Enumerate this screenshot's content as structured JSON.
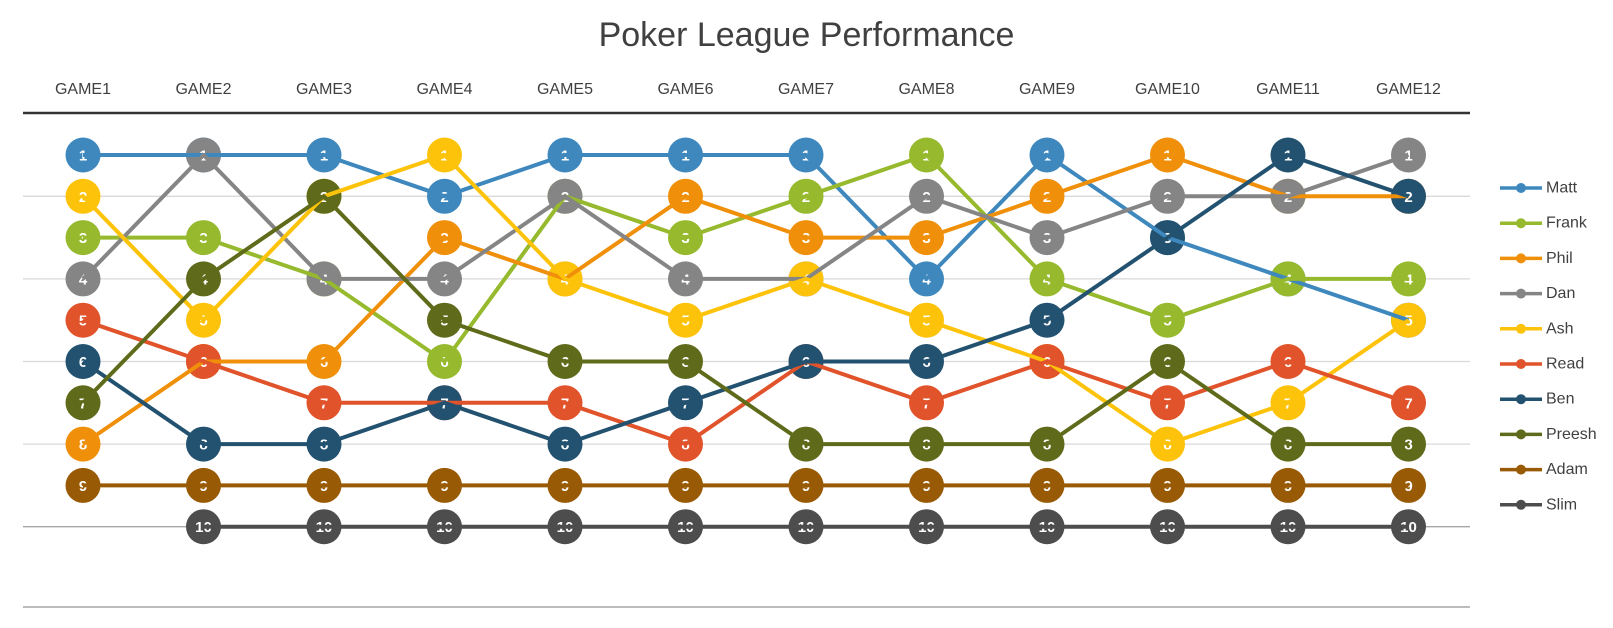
{
  "chart_data": {
    "type": "line",
    "title": "Poker League Performance",
    "categories": [
      "GAME1",
      "GAME2",
      "GAME3",
      "GAME4",
      "GAME5",
      "GAME6",
      "GAME7",
      "GAME8",
      "GAME9",
      "GAME10",
      "GAME11",
      "GAME12"
    ],
    "y_reversed": true,
    "ylim": [
      0.5,
      10.5
    ],
    "grid": true,
    "legend_position": "right",
    "series": [
      {
        "name": "Matt",
        "color": "#3E88BE",
        "values": [
          1,
          1,
          1,
          2,
          1,
          1,
          1,
          4,
          1,
          3,
          4,
          5
        ]
      },
      {
        "name": "Frank",
        "color": "#96B92D",
        "values": [
          3,
          3,
          4,
          6,
          2,
          3,
          2,
          1,
          4,
          5,
          4,
          4
        ]
      },
      {
        "name": "Phil",
        "color": "#F0900A",
        "values": [
          8,
          6,
          6,
          3,
          4,
          2,
          3,
          3,
          2,
          1,
          2,
          2
        ]
      },
      {
        "name": "Dan",
        "color": "#858585",
        "values": [
          4,
          1,
          4,
          4,
          2,
          4,
          4,
          2,
          3,
          2,
          2,
          1
        ]
      },
      {
        "name": "Ash",
        "color": "#FDC30B",
        "values": [
          2,
          5,
          2,
          1,
          4,
          5,
          4,
          5,
          6,
          8,
          7,
          5
        ]
      },
      {
        "name": "Read",
        "color": "#E0532B",
        "values": [
          5,
          6,
          7,
          7,
          7,
          8,
          6,
          7,
          6,
          7,
          6,
          7
        ]
      },
      {
        "name": "Ben",
        "color": "#235270",
        "values": [
          6,
          8,
          8,
          7,
          8,
          7,
          6,
          6,
          5,
          3,
          1,
          2
        ]
      },
      {
        "name": "Preesh",
        "color": "#5F6B1A",
        "values": [
          7,
          4,
          2,
          5,
          6,
          6,
          8,
          8,
          8,
          6,
          8,
          8
        ]
      },
      {
        "name": "Adam",
        "color": "#995A05",
        "values": [
          9,
          9,
          9,
          9,
          9,
          9,
          9,
          9,
          9,
          9,
          9,
          9
        ]
      },
      {
        "name": "Slim",
        "color": "#4D4D4D",
        "values": [
          null,
          10,
          10,
          10,
          10,
          10,
          10,
          10,
          10,
          10,
          10,
          10
        ]
      }
    ]
  }
}
